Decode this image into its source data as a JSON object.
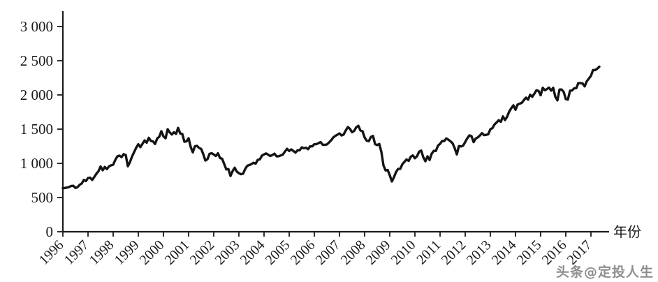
{
  "watermark": "头条@定投人生",
  "watermark_color": "#8e8e8e",
  "chart_data": {
    "type": "line",
    "title": "",
    "xlabel": "年份",
    "ylabel": "",
    "ylim": [
      0,
      3000
    ],
    "grid": false,
    "legend": "none",
    "axis_color": "#1a1a1a",
    "text_color": "#1a1a1a",
    "line_color": "#141414",
    "y_ticks": [
      0,
      500,
      1000,
      1500,
      2000,
      2500,
      3000
    ],
    "y_tick_labels": [
      "0",
      "500",
      "1 000",
      "1 500",
      "2 000",
      "2 500",
      "3 000"
    ],
    "x_tick_labels": [
      "1996",
      "1997",
      "1998",
      "1999",
      "2000",
      "2001",
      "2002",
      "2003",
      "2004",
      "2005",
      "2006",
      "2007",
      "2008",
      "2009",
      "2010",
      "2011",
      "2012",
      "2013",
      "2014",
      "2015",
      "2016",
      "2017"
    ],
    "series": [
      {
        "name": "series1",
        "start_year": 1996,
        "points_per_year": 12,
        "values": [
          636,
          640,
          646,
          654,
          669,
          671,
          640,
          652,
          687,
          705,
          757,
          741,
          786,
          791,
          757,
          801,
          848,
          885,
          954,
          899,
          947,
          915,
          955,
          970,
          980,
          1049,
          1102,
          1112,
          1091,
          1134,
          1121,
          957,
          1017,
          1099,
          1164,
          1229,
          1280,
          1238,
          1286,
          1335,
          1302,
          1373,
          1329,
          1320,
          1283,
          1363,
          1389,
          1469,
          1394,
          1366,
          1499,
          1452,
          1421,
          1455,
          1431,
          1518,
          1437,
          1429,
          1315,
          1320,
          1366,
          1240,
          1160,
          1249,
          1256,
          1224,
          1211,
          1134,
          1041,
          1060,
          1139,
          1148,
          1130,
          1107,
          1147,
          1077,
          1067,
          990,
          911,
          916,
          815,
          886,
          936,
          880,
          856,
          841,
          848,
          917,
          964,
          975,
          990,
          1008,
          996,
          1051,
          1058,
          1112,
          1131,
          1145,
          1126,
          1107,
          1121,
          1141,
          1102,
          1104,
          1115,
          1130,
          1174,
          1212,
          1181,
          1204,
          1181,
          1157,
          1192,
          1191,
          1234,
          1220,
          1229,
          1207,
          1249,
          1248,
          1280,
          1281,
          1295,
          1311,
          1270,
          1270,
          1277,
          1304,
          1336,
          1378,
          1401,
          1418,
          1438,
          1407,
          1421,
          1482,
          1531,
          1503,
          1455,
          1474,
          1527,
          1549,
          1481,
          1468,
          1379,
          1331,
          1323,
          1386,
          1400,
          1280,
          1267,
          1283,
          1166,
          969,
          896,
          903,
          826,
          735,
          798,
          873,
          919,
          919,
          987,
          1021,
          1057,
          1036,
          1096,
          1115,
          1074,
          1104,
          1169,
          1187,
          1089,
          1031,
          1102,
          1049,
          1141,
          1183,
          1181,
          1258,
          1286,
          1327,
          1326,
          1364,
          1345,
          1321,
          1292,
          1219,
          1131,
          1253,
          1247,
          1258,
          1312,
          1366,
          1408,
          1398,
          1310,
          1362,
          1379,
          1407,
          1441,
          1412,
          1416,
          1426,
          1498,
          1515,
          1569,
          1598,
          1631,
          1606,
          1686,
          1633,
          1682,
          1757,
          1806,
          1848,
          1783,
          1859,
          1872,
          1884,
          1924,
          1960,
          1931,
          2003,
          1972,
          2018,
          2068,
          2059,
          1995,
          2105,
          2068,
          2086,
          2107,
          2063,
          2104,
          1972,
          1920,
          2079,
          2080,
          2044,
          1940,
          1932,
          2060,
          2065,
          2097,
          2099,
          2174,
          2171,
          2168,
          2126,
          2199,
          2239,
          2279,
          2364,
          2363,
          2384,
          2412
        ]
      }
    ]
  }
}
